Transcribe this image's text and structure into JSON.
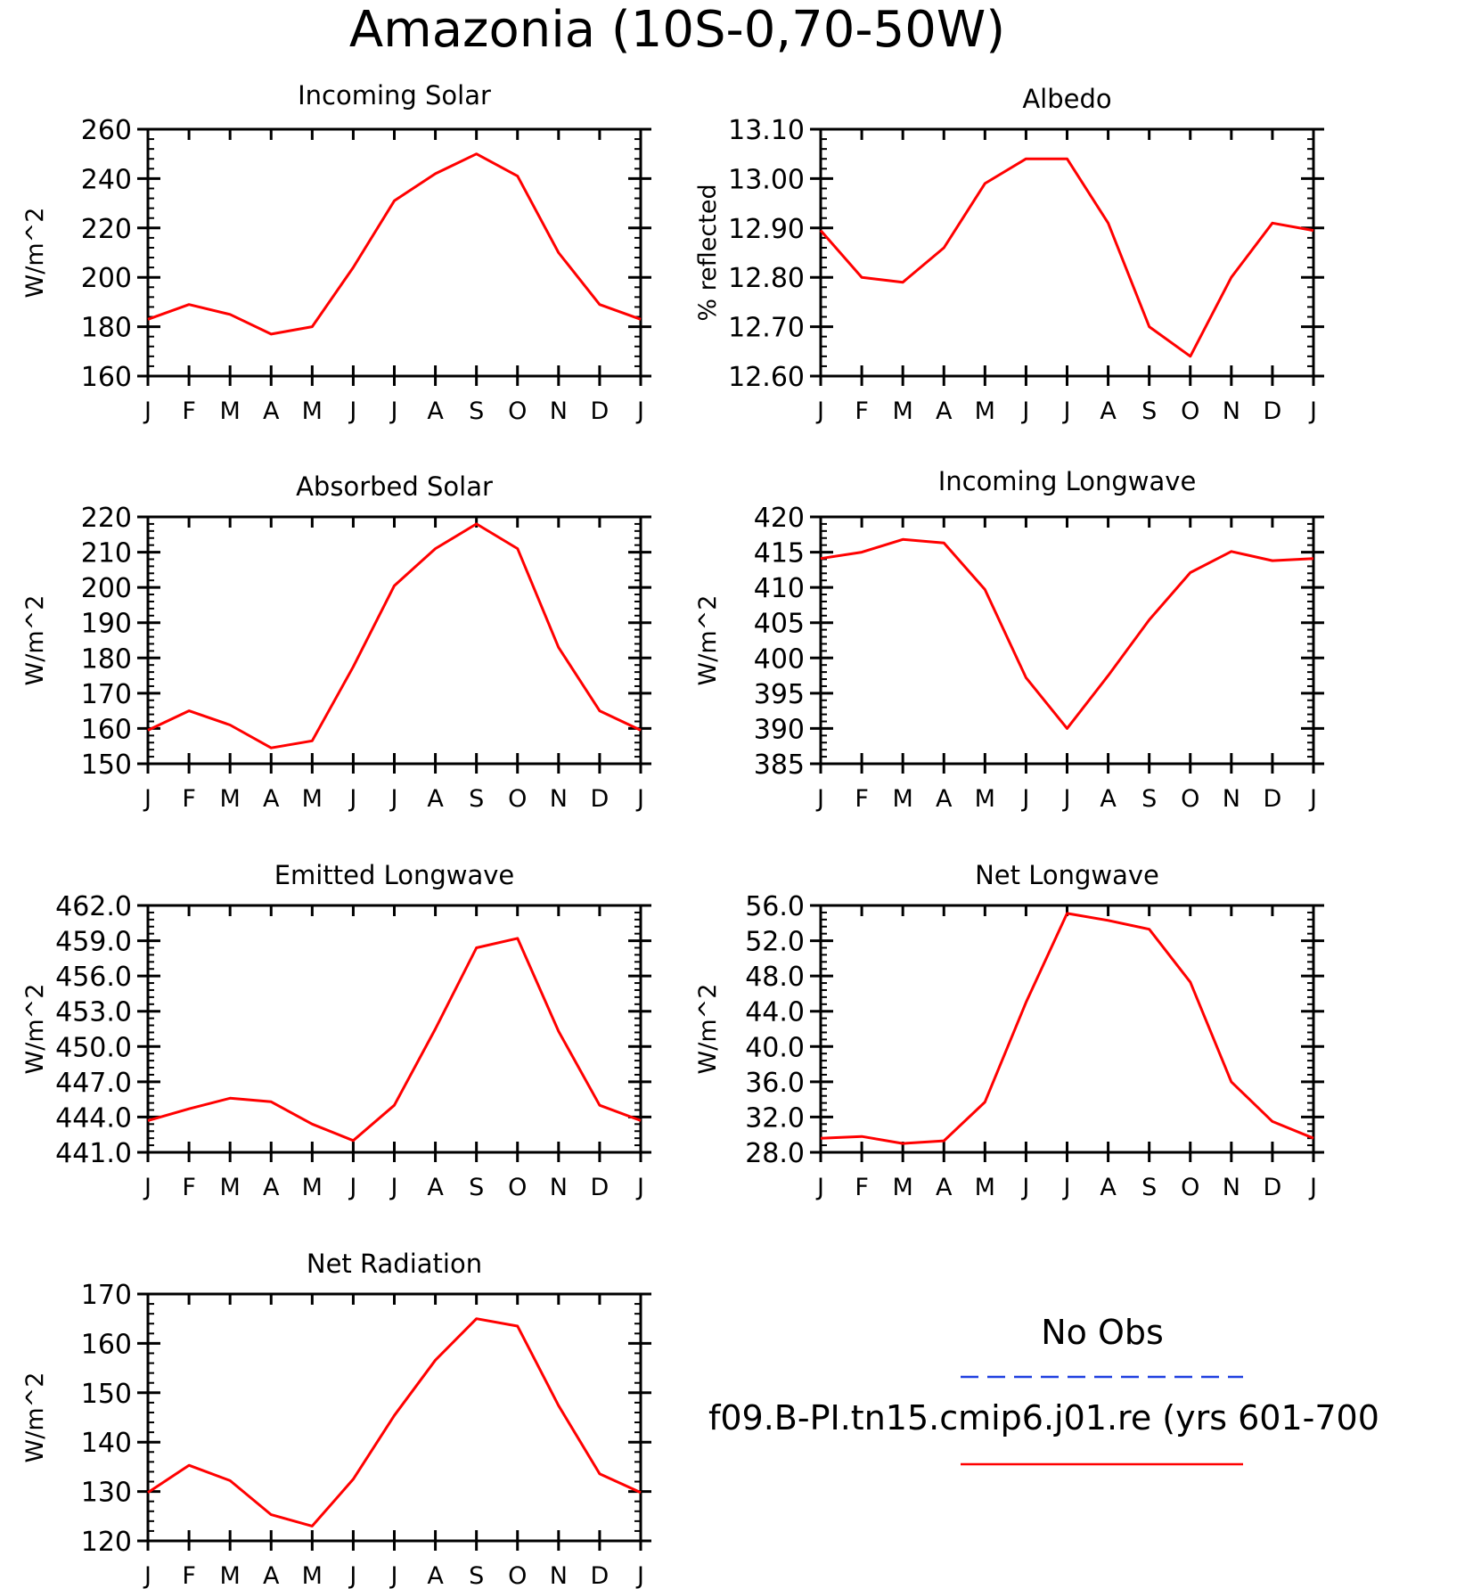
{
  "figure_title": "Amazonia (10S-0,70-50W)",
  "legend": {
    "obs_label": "No Obs",
    "obs_color": "#1f3fe0",
    "model_label": "f09.B-PI.tn15.cmip6.j01.re (yrs 601-700",
    "model_color": "#ff0000"
  },
  "chart_data": [
    {
      "type": "line",
      "title": "Incoming Solar",
      "ylabel": "W/m^2",
      "categories": [
        "J",
        "F",
        "M",
        "A",
        "M",
        "J",
        "J",
        "A",
        "S",
        "O",
        "N",
        "D",
        "J"
      ],
      "ylim": [
        160,
        260
      ],
      "yticks": [
        "160",
        "180",
        "200",
        "220",
        "240",
        "260"
      ],
      "ytick_values": [
        160,
        180,
        200,
        220,
        240,
        260
      ],
      "series": [
        {
          "color": "#ff0000",
          "values": [
            183,
            189,
            185,
            177,
            180,
            204,
            231,
            242,
            250,
            241,
            210,
            189,
            183
          ]
        }
      ]
    },
    {
      "type": "line",
      "title": "Albedo",
      "ylabel": "% reflected",
      "categories": [
        "J",
        "F",
        "M",
        "A",
        "M",
        "J",
        "J",
        "A",
        "S",
        "O",
        "N",
        "D",
        "J"
      ],
      "ylim": [
        12.6,
        13.1
      ],
      "yticks": [
        "12.60",
        "12.70",
        "12.80",
        "12.90",
        "13.00",
        "13.10"
      ],
      "ytick_values": [
        12.6,
        12.7,
        12.8,
        12.9,
        13.0,
        13.1
      ],
      "series": [
        {
          "color": "#ff0000",
          "values": [
            12.895,
            12.8,
            12.79,
            12.86,
            12.99,
            13.04,
            13.04,
            12.91,
            12.7,
            12.64,
            12.8,
            12.91,
            12.895
          ]
        }
      ]
    },
    {
      "type": "line",
      "title": "Absorbed Solar",
      "ylabel": "W/m^2",
      "categories": [
        "J",
        "F",
        "M",
        "A",
        "M",
        "J",
        "J",
        "A",
        "S",
        "O",
        "N",
        "D",
        "J"
      ],
      "ylim": [
        150,
        220
      ],
      "yticks": [
        "150",
        "160",
        "170",
        "180",
        "190",
        "200",
        "210",
        "220"
      ],
      "ytick_values": [
        150,
        160,
        170,
        180,
        190,
        200,
        210,
        220
      ],
      "series": [
        {
          "color": "#ff0000",
          "values": [
            159.5,
            165,
            161,
            154.5,
            156.5,
            177.5,
            200.5,
            211,
            218,
            211,
            183,
            165,
            159.5
          ]
        }
      ]
    },
    {
      "type": "line",
      "title": "Incoming Longwave",
      "ylabel": "W/m^2",
      "categories": [
        "J",
        "F",
        "M",
        "A",
        "M",
        "J",
        "J",
        "A",
        "S",
        "O",
        "N",
        "D",
        "J"
      ],
      "ylim": [
        385,
        420
      ],
      "yticks": [
        "385",
        "390",
        "395",
        "400",
        "405",
        "410",
        "415",
        "420"
      ],
      "ytick_values": [
        385,
        390,
        395,
        400,
        405,
        410,
        415,
        420
      ],
      "series": [
        {
          "color": "#ff0000",
          "values": [
            414.1,
            415,
            416.8,
            416.3,
            409.7,
            397.2,
            390,
            397.5,
            405.4,
            412.1,
            415.1,
            413.8,
            414.1
          ]
        }
      ]
    },
    {
      "type": "line",
      "title": "Emitted Longwave",
      "ylabel": "W/m^2",
      "categories": [
        "J",
        "F",
        "M",
        "A",
        "M",
        "J",
        "J",
        "A",
        "S",
        "O",
        "N",
        "D",
        "J"
      ],
      "ylim": [
        441.0,
        462.0
      ],
      "yticks": [
        "441.0",
        "444.0",
        "447.0",
        "450.0",
        "453.0",
        "456.0",
        "459.0",
        "462.0"
      ],
      "ytick_values": [
        441,
        444,
        447,
        450,
        453,
        456,
        459,
        462
      ],
      "series": [
        {
          "color": "#ff0000",
          "values": [
            443.7,
            444.7,
            445.6,
            445.3,
            443.4,
            442.0,
            445.0,
            451.5,
            458.4,
            459.2,
            451.3,
            445.0,
            443.7
          ]
        }
      ]
    },
    {
      "type": "line",
      "title": "Net Longwave",
      "ylabel": "W/m^2",
      "categories": [
        "J",
        "F",
        "M",
        "A",
        "M",
        "J",
        "J",
        "A",
        "S",
        "O",
        "N",
        "D",
        "J"
      ],
      "ylim": [
        28.0,
        56.0
      ],
      "yticks": [
        "28.0",
        "32.0",
        "36.0",
        "40.0",
        "44.0",
        "48.0",
        "52.0",
        "56.0"
      ],
      "ytick_values": [
        28,
        32,
        36,
        40,
        44,
        48,
        52,
        56
      ],
      "series": [
        {
          "color": "#ff0000",
          "values": [
            29.6,
            29.8,
            29.0,
            29.3,
            33.7,
            45.0,
            55.1,
            54.3,
            53.3,
            47.3,
            36.0,
            31.5,
            29.6
          ]
        }
      ]
    },
    {
      "type": "line",
      "title": "Net Radiation",
      "ylabel": "W/m^2",
      "categories": [
        "J",
        "F",
        "M",
        "A",
        "M",
        "J",
        "J",
        "A",
        "S",
        "O",
        "N",
        "D",
        "J"
      ],
      "ylim": [
        120,
        170
      ],
      "yticks": [
        "120",
        "130",
        "140",
        "150",
        "160",
        "170"
      ],
      "ytick_values": [
        120,
        130,
        140,
        150,
        160,
        170
      ],
      "series": [
        {
          "color": "#ff0000",
          "values": [
            129.8,
            135.3,
            132.2,
            125.3,
            123.0,
            132.5,
            145.4,
            156.6,
            165.0,
            163.5,
            147.4,
            133.6,
            129.8
          ]
        }
      ]
    }
  ]
}
